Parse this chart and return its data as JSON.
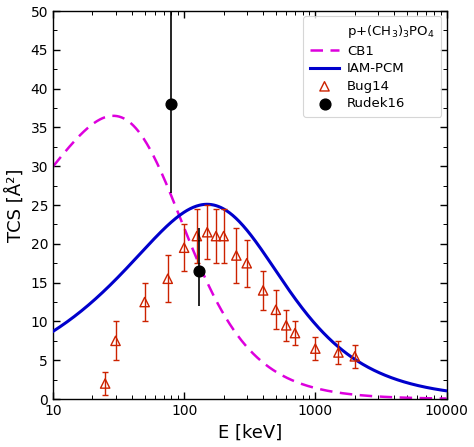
{
  "xlabel": "E [keV]",
  "ylabel": "TCS [Å²]",
  "xlim": [
    10,
    10000
  ],
  "ylim": [
    0,
    50
  ],
  "iam_pcm_color": "#0000cc",
  "cb1_color": "#dd00dd",
  "bug14_color": "#cc2200",
  "rudek16_color": "#000000",
  "legend_title": "p+(CH$_3$)$_3$PO$_4$",
  "bug14_data": {
    "E": [
      25,
      30,
      50,
      75,
      100,
      125,
      150,
      175,
      200,
      250,
      300,
      400,
      500,
      600,
      700,
      1000,
      1500,
      2000
    ],
    "TCS": [
      2.0,
      7.5,
      12.5,
      15.5,
      19.5,
      21.0,
      21.5,
      21.0,
      21.0,
      18.5,
      17.5,
      14.0,
      11.5,
      9.5,
      8.5,
      6.5,
      6.0,
      5.5
    ],
    "err": [
      1.5,
      2.5,
      2.5,
      3.0,
      3.0,
      3.5,
      3.5,
      3.5,
      3.5,
      3.5,
      3.0,
      2.5,
      2.5,
      2.0,
      1.5,
      1.5,
      1.5,
      1.5
    ]
  },
  "rudek16_data": {
    "E": [
      80,
      130
    ],
    "TCS": [
      38.0,
      16.5
    ],
    "err_low": [
      11.5,
      4.5
    ],
    "err_high": [
      12.0,
      5.5
    ]
  }
}
